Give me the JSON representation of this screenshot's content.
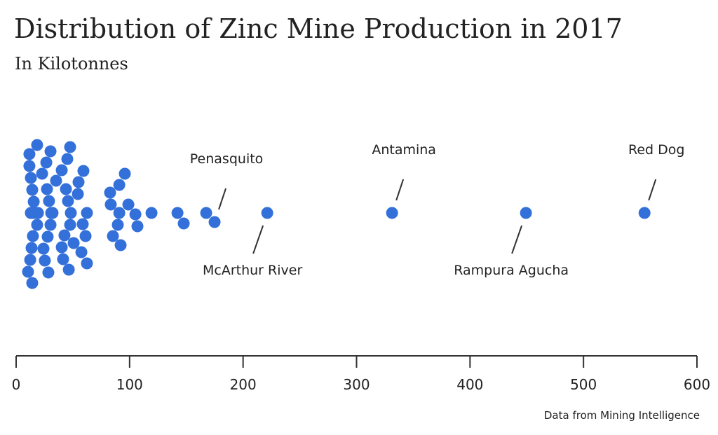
{
  "chart_data": {
    "type": "beeswarm",
    "title": "Distribution of Zinc Mine Production in 2017",
    "subtitle": "In Kilotonnes",
    "source": "Data from Mining Intelligence",
    "color": "#3470d9",
    "values": [
      19.2,
      18.5,
      15.5,
      14.8,
      14.2,
      13.6,
      13.0,
      12.4,
      11.7,
      10.5,
      11.7,
      13.0,
      13.0,
      13.6,
      14.2,
      14.8,
      16.1,
      18.5,
      19.2,
      30.9,
      30.3,
      29.0,
      27.8,
      27.2,
      24.1,
      22.9,
      25.3,
      26.6,
      28.4,
      30.3,
      31.5,
      32.1,
      35.2,
      48.2,
      47.6,
      45.7,
      42.6,
      40.2,
      43.9,
      40.2,
      41.4,
      45.1,
      46.4,
      47.6,
      50.7,
      54.4,
      62.4,
      58.7,
      61.2,
      55.0,
      57.5,
      59.3,
      62.4,
      90.9,
      89.6,
      83.4,
      82.8,
      85.3,
      90.9,
      92.1,
      98.9,
      95.8,
      105.1,
      106.9,
      119.3,
      142.2,
      147.7,
      167.5,
      174.9,
      221.3,
      331.3,
      449.3,
      553.8
    ],
    "categories": [
      null,
      null,
      null,
      null,
      null,
      null,
      null,
      null,
      null,
      null,
      null,
      null,
      null,
      null,
      null,
      null,
      null,
      null,
      null,
      null,
      null,
      null,
      null,
      null,
      null,
      null,
      null,
      null,
      null,
      null,
      null,
      null,
      null,
      null,
      null,
      null,
      null,
      null,
      null,
      null,
      null,
      null,
      null,
      null,
      null,
      null,
      null,
      null,
      null,
      null,
      null,
      null,
      null,
      null,
      null,
      null,
      null,
      null,
      null,
      null,
      null,
      null,
      null,
      null,
      null,
      null,
      null,
      null,
      "Penasquito",
      "McArthur River",
      "Antamina",
      "Rampura Agucha",
      "Red Dog"
    ],
    "xlim": [
      0,
      600
    ],
    "xticks": [
      0,
      100,
      200,
      300,
      400,
      500,
      600
    ]
  }
}
